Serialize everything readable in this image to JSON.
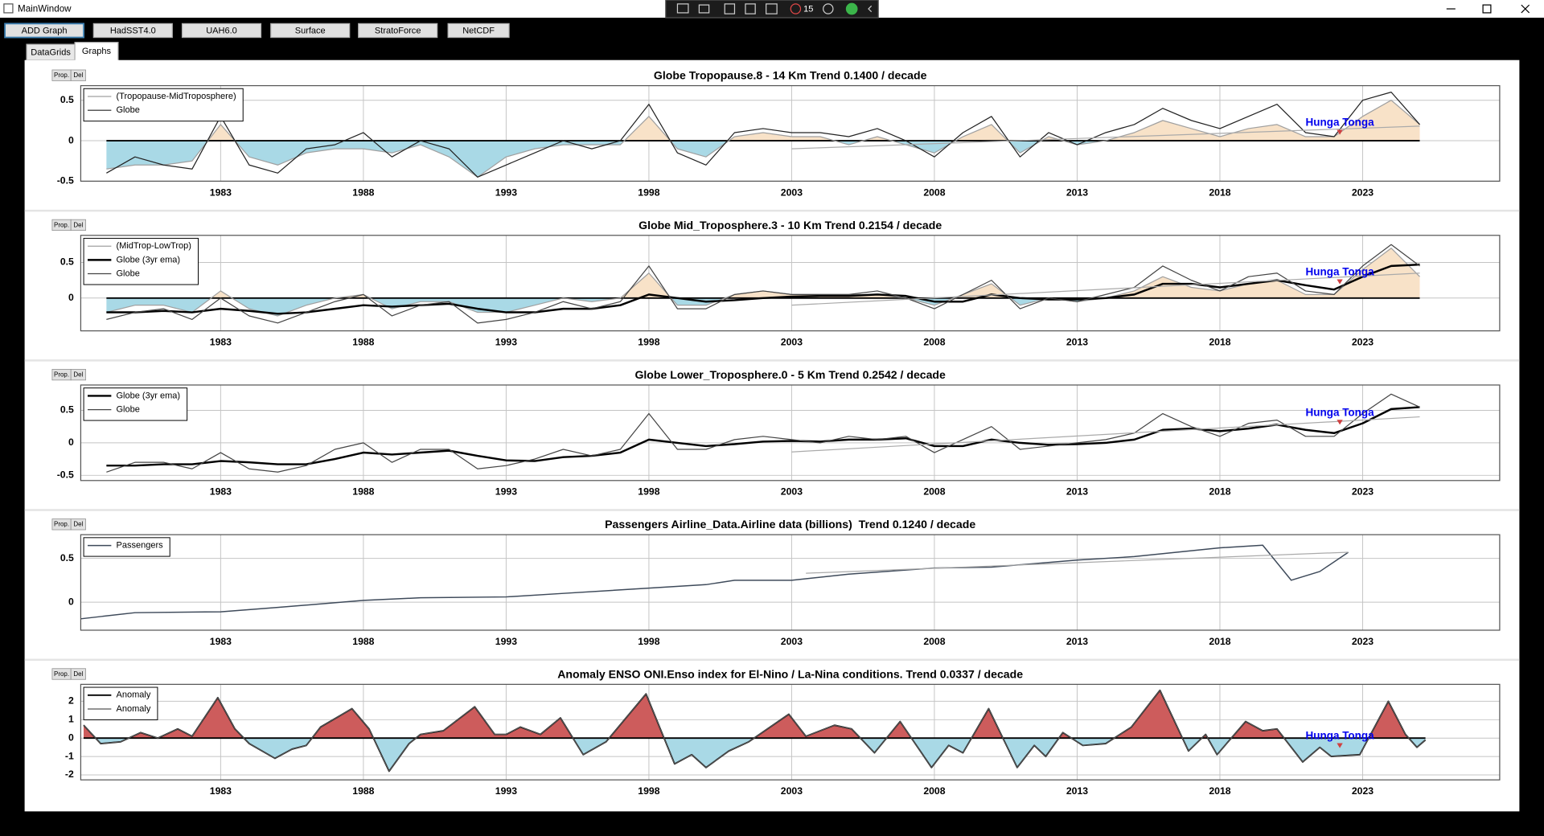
{
  "window": {
    "title": "MainWindow"
  },
  "overlay": {
    "badge": "15"
  },
  "toolbar": {
    "buttons": [
      "ADD Graph",
      "HadSST4.0",
      "UAH6.0",
      "Surface",
      "StratoForce",
      "NetCDF"
    ]
  },
  "tabs": [
    "DataGrids",
    "Graphs"
  ],
  "panel_buttons": [
    "Prop.",
    "Del"
  ],
  "chart_data": [
    {
      "type": "area",
      "title": "Globe Tropopause.8 - 14 Km Trend 0.1400 / decade",
      "x": [
        1979,
        1980,
        1981,
        1982,
        1983,
        1984,
        1985,
        1986,
        1987,
        1988,
        1989,
        1990,
        1991,
        1992,
        1993,
        1994,
        1995,
        1996,
        1997,
        1998,
        1999,
        2000,
        2001,
        2002,
        2003,
        2004,
        2005,
        2006,
        2007,
        2008,
        2009,
        2010,
        2011,
        2012,
        2013,
        2014,
        2015,
        2016,
        2017,
        2018,
        2019,
        2020,
        2021,
        2022,
        2023,
        2024,
        2025
      ],
      "series": [
        {
          "name": "(Tropopause-MidTroposphere)",
          "color": "#a0a0a0",
          "width": 1,
          "fill": true,
          "values": [
            -0.35,
            -0.3,
            -0.3,
            -0.25,
            0.2,
            -0.2,
            -0.3,
            -0.15,
            -0.1,
            -0.1,
            -0.15,
            -0.05,
            -0.2,
            -0.45,
            -0.2,
            -0.1,
            -0.05,
            -0.05,
            -0.05,
            0.3,
            -0.1,
            -0.2,
            0.05,
            0.1,
            0.05,
            0.05,
            -0.05,
            0.05,
            -0.05,
            -0.15,
            0.05,
            0.2,
            -0.15,
            0.05,
            -0.05,
            0.0,
            0.1,
            0.25,
            0.15,
            0.05,
            0.15,
            0.2,
            0.05,
            0.05,
            0.3,
            0.5,
            0.2
          ]
        },
        {
          "name": "Globe",
          "color": "#222222",
          "width": 1,
          "fill": false,
          "values": [
            -0.4,
            -0.2,
            -0.3,
            -0.35,
            0.3,
            -0.3,
            -0.4,
            -0.1,
            -0.05,
            0.1,
            -0.2,
            0.0,
            -0.1,
            -0.45,
            -0.3,
            -0.15,
            0.0,
            -0.1,
            0.0,
            0.45,
            -0.15,
            -0.3,
            0.1,
            0.15,
            0.1,
            0.1,
            0.05,
            0.15,
            0.0,
            -0.2,
            0.1,
            0.3,
            -0.2,
            0.1,
            -0.05,
            0.1,
            0.2,
            0.4,
            0.25,
            0.15,
            0.3,
            0.45,
            0.1,
            0.05,
            0.5,
            0.6,
            0.2
          ]
        }
      ],
      "fill_colors": {
        "positive": "#f8e2c8",
        "negative": "#a9d9e6"
      },
      "trend": {
        "x": [
          2003,
          2025
        ],
        "values": [
          -0.1,
          0.18
        ],
        "color": "#aaaaaa"
      },
      "annotations": [
        {
          "text": "Hunga Tonga",
          "x": 2022.2,
          "y": 0.22,
          "color": "#0000ee"
        }
      ],
      "xlim": [
        1978.1,
        2027.8
      ],
      "xticks": [
        1983,
        1988,
        1993,
        1998,
        2003,
        2008,
        2013,
        2018,
        2023
      ],
      "ylim": [
        -0.5,
        0.68
      ],
      "yticks": [
        -0.5,
        0,
        0.5
      ],
      "grid": true,
      "legend": "upper-left"
    },
    {
      "type": "area",
      "title": "Globe Mid_Troposphere.3 - 10 Km Trend 0.2154 / decade",
      "x": [
        1979,
        1980,
        1981,
        1982,
        1983,
        1984,
        1985,
        1986,
        1987,
        1988,
        1989,
        1990,
        1991,
        1992,
        1993,
        1994,
        1995,
        1996,
        1997,
        1998,
        1999,
        2000,
        2001,
        2002,
        2003,
        2004,
        2005,
        2006,
        2007,
        2008,
        2009,
        2010,
        2011,
        2012,
        2013,
        2014,
        2015,
        2016,
        2017,
        2018,
        2019,
        2020,
        2021,
        2022,
        2023,
        2024,
        2025
      ],
      "series": [
        {
          "name": "(MidTrop-LowTrop)",
          "color": "#a0a0a0",
          "width": 1,
          "fill": true,
          "values": [
            -0.2,
            -0.1,
            -0.1,
            -0.2,
            0.1,
            -0.15,
            -0.25,
            -0.1,
            0.0,
            0.05,
            -0.15,
            -0.05,
            -0.05,
            -0.2,
            -0.2,
            -0.1,
            0.0,
            -0.05,
            0.0,
            0.35,
            -0.1,
            -0.1,
            0.05,
            0.1,
            0.05,
            0.05,
            0.05,
            0.05,
            0.0,
            -0.1,
            0.05,
            0.2,
            -0.1,
            0.0,
            -0.05,
            0.0,
            0.1,
            0.3,
            0.15,
            0.1,
            0.2,
            0.25,
            0.05,
            0.05,
            0.4,
            0.7,
            0.3
          ]
        },
        {
          "name": "Globe (3yr ema)",
          "color": "#000000",
          "width": 2,
          "fill": false,
          "values": [
            -0.2,
            -0.2,
            -0.18,
            -0.2,
            -0.15,
            -0.18,
            -0.22,
            -0.2,
            -0.15,
            -0.1,
            -0.12,
            -0.1,
            -0.08,
            -0.15,
            -0.2,
            -0.2,
            -0.15,
            -0.15,
            -0.1,
            0.05,
            0.0,
            -0.05,
            -0.03,
            0.0,
            0.02,
            0.03,
            0.03,
            0.05,
            0.03,
            -0.05,
            -0.05,
            0.05,
            0.0,
            -0.02,
            -0.02,
            0.0,
            0.05,
            0.2,
            0.2,
            0.15,
            0.2,
            0.25,
            0.18,
            0.12,
            0.3,
            0.45,
            0.47
          ]
        },
        {
          "name": "Globe",
          "color": "#444444",
          "width": 1,
          "fill": false,
          "values": [
            -0.3,
            -0.2,
            -0.15,
            -0.3,
            0.0,
            -0.25,
            -0.35,
            -0.2,
            -0.05,
            0.05,
            -0.25,
            -0.1,
            -0.05,
            -0.35,
            -0.3,
            -0.2,
            -0.05,
            -0.15,
            -0.05,
            0.45,
            -0.15,
            -0.15,
            0.05,
            0.1,
            0.05,
            0.05,
            0.05,
            0.1,
            0.0,
            -0.15,
            0.05,
            0.25,
            -0.15,
            0.0,
            -0.05,
            0.05,
            0.15,
            0.45,
            0.25,
            0.1,
            0.3,
            0.35,
            0.1,
            0.05,
            0.45,
            0.75,
            0.45
          ]
        }
      ],
      "fill_colors": {
        "positive": "#f8e2c8",
        "negative": "#a9d9e6"
      },
      "trend": {
        "x": [
          2003,
          2025
        ],
        "values": [
          -0.1,
          0.35
        ],
        "color": "#aaaaaa"
      },
      "annotations": [
        {
          "text": "Hunga Tonga",
          "x": 2022.2,
          "y": 0.36,
          "color": "#0000ee"
        }
      ],
      "xlim": [
        1978.1,
        2027.8
      ],
      "xticks": [
        1983,
        1988,
        1993,
        1998,
        2003,
        2008,
        2013,
        2018,
        2023
      ],
      "ylim": [
        -0.46,
        0.88
      ],
      "yticks": [
        0,
        0.5
      ],
      "grid": true,
      "legend": "upper-left"
    },
    {
      "type": "line",
      "title": "Globe Lower_Troposphere.0 - 5 Km Trend 0.2542 / decade",
      "x": [
        1979,
        1980,
        1981,
        1982,
        1983,
        1984,
        1985,
        1986,
        1987,
        1988,
        1989,
        1990,
        1991,
        1992,
        1993,
        1994,
        1995,
        1996,
        1997,
        1998,
        1999,
        2000,
        2001,
        2002,
        2003,
        2004,
        2005,
        2006,
        2007,
        2008,
        2009,
        2010,
        2011,
        2012,
        2013,
        2014,
        2015,
        2016,
        2017,
        2018,
        2019,
        2020,
        2021,
        2022,
        2023,
        2024,
        2025
      ],
      "series": [
        {
          "name": "Globe (3yr ema)",
          "color": "#000000",
          "width": 2,
          "fill": false,
          "values": [
            -0.35,
            -0.35,
            -0.33,
            -0.33,
            -0.28,
            -0.3,
            -0.33,
            -0.33,
            -0.25,
            -0.15,
            -0.18,
            -0.15,
            -0.12,
            -0.2,
            -0.27,
            -0.28,
            -0.22,
            -0.2,
            -0.15,
            0.05,
            0.0,
            -0.05,
            -0.02,
            0.02,
            0.03,
            0.02,
            0.05,
            0.05,
            0.07,
            -0.05,
            -0.05,
            0.05,
            0.0,
            -0.03,
            -0.02,
            0.0,
            0.05,
            0.2,
            0.22,
            0.18,
            0.22,
            0.28,
            0.2,
            0.15,
            0.3,
            0.52,
            0.55
          ]
        },
        {
          "name": "Globe",
          "color": "#444444",
          "width": 1,
          "fill": false,
          "values": [
            -0.45,
            -0.3,
            -0.3,
            -0.4,
            -0.15,
            -0.4,
            -0.45,
            -0.35,
            -0.1,
            0.0,
            -0.3,
            -0.1,
            -0.1,
            -0.4,
            -0.35,
            -0.25,
            -0.1,
            -0.2,
            -0.1,
            0.45,
            -0.1,
            -0.1,
            0.05,
            0.1,
            0.05,
            0.0,
            0.1,
            0.05,
            0.1,
            -0.15,
            0.05,
            0.25,
            -0.1,
            -0.05,
            0.0,
            0.05,
            0.15,
            0.45,
            0.25,
            0.1,
            0.3,
            0.35,
            0.1,
            0.1,
            0.45,
            0.75,
            0.55
          ]
        }
      ],
      "trend": {
        "x": [
          2003,
          2025
        ],
        "values": [
          -0.14,
          0.4
        ],
        "color": "#aaaaaa"
      },
      "annotations": [
        {
          "text": "Hunga Tonga",
          "x": 2022.2,
          "y": 0.46,
          "color": "#0000ee"
        }
      ],
      "xlim": [
        1978.1,
        2027.8
      ],
      "xticks": [
        1983,
        1988,
        1993,
        1998,
        2003,
        2008,
        2013,
        2018,
        2023
      ],
      "ylim": [
        -0.58,
        0.89
      ],
      "yticks": [
        -0.5,
        0,
        0.5
      ],
      "grid": true,
      "legend": "upper-left"
    },
    {
      "type": "line",
      "title": "Passengers Airline_Data.Airline data (billions)  Trend 0.1240 / decade",
      "x": [
        1978.1,
        1980,
        1983,
        1985,
        1988,
        1990,
        1993,
        1995,
        1998,
        2000,
        2001,
        2003,
        2005,
        2008,
        2010,
        2013,
        2015,
        2018,
        2019.5,
        2020.5,
        2021.5,
        2022.5
      ],
      "series": [
        {
          "name": "Passengers",
          "color": "#3e4a5a",
          "width": 1.2,
          "fill": false,
          "values": [
            -0.19,
            -0.12,
            -0.11,
            -0.06,
            0.02,
            0.05,
            0.06,
            0.1,
            0.16,
            0.2,
            0.25,
            0.25,
            0.32,
            0.39,
            0.4,
            0.48,
            0.52,
            0.62,
            0.65,
            0.25,
            0.35,
            0.57
          ]
        }
      ],
      "trend": {
        "x": [
          2003.5,
          2022.5
        ],
        "values": [
          0.33,
          0.57
        ],
        "color": "#aaaaaa"
      },
      "xlim": [
        1978.1,
        2027.8
      ],
      "xticks": [
        1983,
        1988,
        1993,
        1998,
        2003,
        2008,
        2013,
        2018,
        2023
      ],
      "ylim": [
        -0.32,
        0.77
      ],
      "yticks": [
        0,
        0.5
      ],
      "grid": true,
      "legend": "upper-left"
    },
    {
      "type": "area",
      "title": "Anomaly ENSO ONI.Enso index for El-Nino / La-Nina conditions. Trend 0.0337 / decade",
      "x": [
        1978.2,
        1978.8,
        1979.5,
        1980.2,
        1980.8,
        1981.5,
        1982.0,
        1982.9,
        1983.5,
        1984.0,
        1984.9,
        1985.5,
        1986.0,
        1986.5,
        1987.6,
        1988.2,
        1988.9,
        1989.6,
        1990.0,
        1990.8,
        1991.9,
        1992.6,
        1993.0,
        1993.5,
        1994.2,
        1994.9,
        1995.7,
        1996.5,
        1997.9,
        1998.9,
        1999.5,
        2000.0,
        2000.8,
        2001.5,
        2002.9,
        2003.5,
        2004.5,
        2005.1,
        2005.9,
        2006.8,
        2007.9,
        2008.5,
        2009.0,
        2009.9,
        2010.9,
        2011.5,
        2011.9,
        2012.5,
        2013.2,
        2014.0,
        2014.9,
        2015.9,
        2016.9,
        2017.5,
        2017.9,
        2018.9,
        2019.5,
        2020.0,
        2020.9,
        2021.5,
        2021.9,
        2022.9,
        2023.9,
        2024.5,
        2024.9,
        2025.2
      ],
      "series": [
        {
          "name": "Anomaly",
          "color": "#000000",
          "width": 1.5,
          "fill": true,
          "values": [
            0.7,
            -0.3,
            -0.2,
            0.3,
            0.0,
            0.5,
            0.1,
            2.2,
            0.5,
            -0.3,
            -1.1,
            -0.6,
            -0.4,
            0.6,
            1.6,
            0.5,
            -1.8,
            -0.3,
            0.2,
            0.4,
            1.7,
            0.2,
            0.2,
            0.6,
            0.2,
            1.1,
            -0.9,
            -0.2,
            2.4,
            -1.4,
            -0.9,
            -1.6,
            -0.7,
            -0.2,
            1.3,
            0.1,
            0.7,
            0.5,
            -0.8,
            0.9,
            -1.6,
            -0.4,
            -0.8,
            1.6,
            -1.6,
            -0.4,
            -1.0,
            0.3,
            -0.4,
            -0.3,
            0.6,
            2.6,
            -0.7,
            0.2,
            -0.9,
            0.9,
            0.4,
            0.5,
            -1.3,
            -0.5,
            -1.0,
            -0.9,
            2.0,
            0.2,
            -0.5,
            -0.1
          ]
        },
        {
          "name": "Anomaly",
          "color": "#555555",
          "width": 1,
          "fill": false,
          "values": [
            0.7,
            -0.3,
            -0.2,
            0.3,
            0.0,
            0.5,
            0.1,
            2.2,
            0.5,
            -0.3,
            -1.1,
            -0.6,
            -0.4,
            0.6,
            1.6,
            0.5,
            -1.8,
            -0.3,
            0.2,
            0.4,
            1.7,
            0.2,
            0.2,
            0.6,
            0.2,
            1.1,
            -0.9,
            -0.2,
            2.4,
            -1.4,
            -0.9,
            -1.6,
            -0.7,
            -0.2,
            1.3,
            0.1,
            0.7,
            0.5,
            -0.8,
            0.9,
            -1.6,
            -0.4,
            -0.8,
            1.6,
            -1.6,
            -0.4,
            -1.0,
            0.3,
            -0.4,
            -0.3,
            0.6,
            2.6,
            -0.7,
            0.2,
            -0.9,
            0.9,
            0.4,
            0.5,
            -1.3,
            -0.5,
            -1.0,
            -0.9,
            2.0,
            0.2,
            -0.5,
            -0.1
          ]
        }
      ],
      "fill_colors": {
        "positive": "#cd5c5c",
        "negative": "#a9d9e6"
      },
      "annotations": [
        {
          "text": "Hunga Tonga",
          "x": 2022.2,
          "y": 0.1,
          "color": "#0000ee"
        }
      ],
      "xlim": [
        1978.1,
        2027.8
      ],
      "xticks": [
        1983,
        1988,
        1993,
        1998,
        2003,
        2008,
        2013,
        2018,
        2023
      ],
      "ylim": [
        -2.27,
        2.92
      ],
      "yticks": [
        -2,
        -1,
        0,
        1,
        2
      ],
      "grid": true,
      "legend": "upper-left"
    }
  ]
}
